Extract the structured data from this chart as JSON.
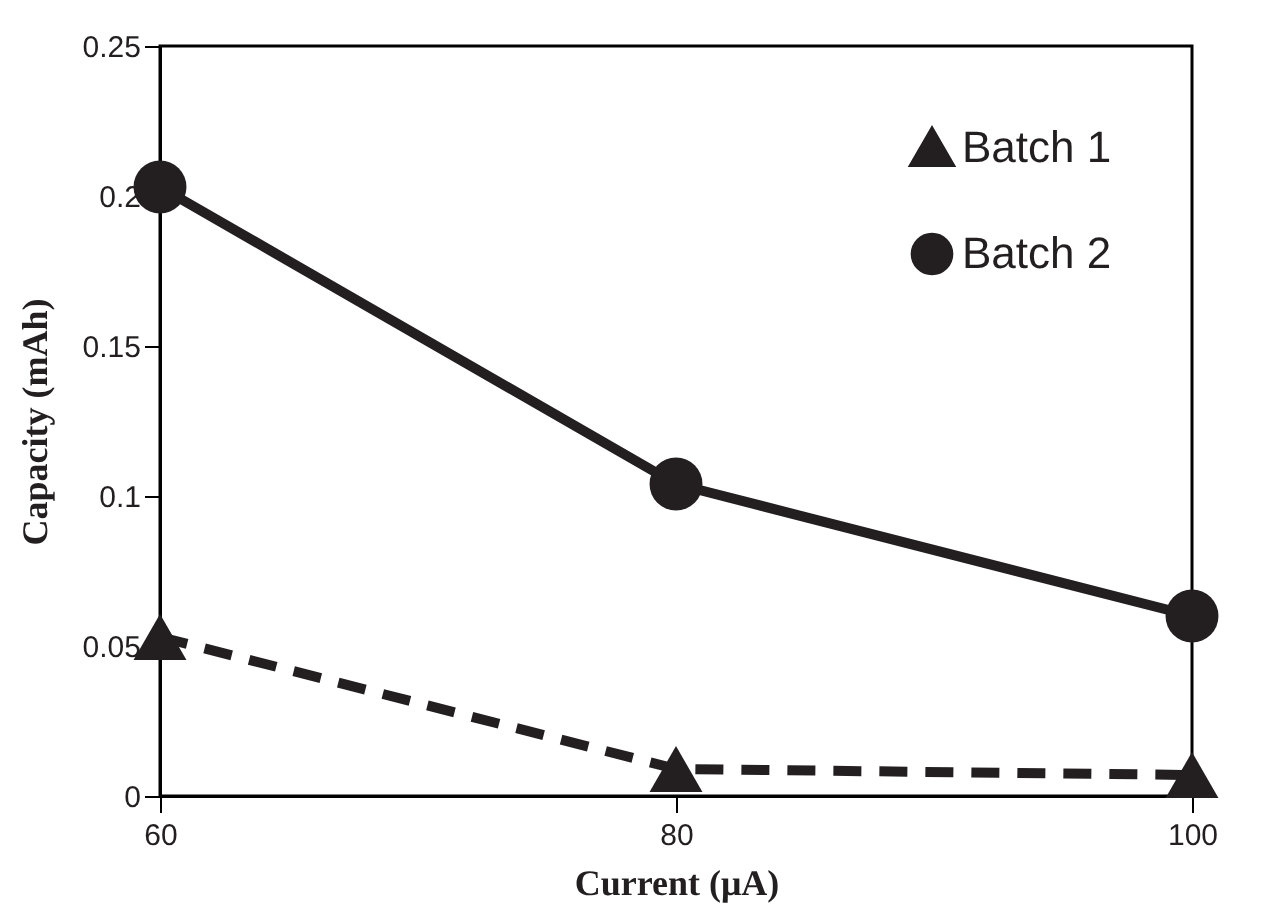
{
  "chart_data": {
    "type": "line",
    "xlabel": "Current (μA)",
    "ylabel": "Capacity (mAh)",
    "x": [
      60,
      80,
      100
    ],
    "series": [
      {
        "name": "Batch 1",
        "color": "#231f20",
        "values": [
          0.053,
          0.009,
          0.007
        ],
        "marker": "triangle",
        "line_style": "dashed"
      },
      {
        "name": "Batch 2",
        "color": "#231f20",
        "values": [
          0.203,
          0.104,
          0.06
        ],
        "marker": "circle",
        "line_style": "solid"
      }
    ],
    "xlim": [
      60,
      100
    ],
    "xticks": [
      60,
      80,
      100
    ],
    "ylim": [
      0,
      0.25
    ],
    "yticks": [
      0,
      0.05,
      0.1,
      0.15,
      0.2,
      0.25
    ],
    "grid": false,
    "legend": "top right"
  }
}
